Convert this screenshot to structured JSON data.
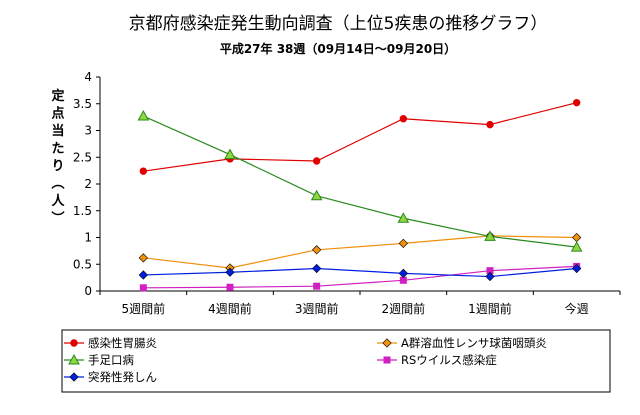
{
  "chart_data": {
    "type": "line",
    "title": "京都府感染症発生動向調査（上位5疾患の推移グラフ）",
    "subtitle": "平成27年 38週（09月14日～09月20日）",
    "ylabel": "定点当たり（人）",
    "xlabel": "",
    "categories": [
      "5週間前",
      "4週間前",
      "3週間前",
      "2週間前",
      "1週間前",
      "今週"
    ],
    "ylim": [
      0,
      4
    ],
    "yticks": [
      "0",
      "0.5",
      "1",
      "1.5",
      "2",
      "2.5",
      "3",
      "3.5",
      "4"
    ],
    "grid": false,
    "legend_position": "bottom",
    "series": [
      {
        "name": "感染性胃腸炎",
        "color": "#e00000",
        "marker": "circle",
        "values": [
          2.24,
          2.47,
          2.43,
          3.22,
          3.11,
          3.52
        ]
      },
      {
        "name": "A群溶血性レンサ球菌咽頭炎",
        "color": "#f0900c",
        "marker": "diamond",
        "values": [
          0.62,
          0.43,
          0.77,
          0.89,
          1.03,
          1.0
        ]
      },
      {
        "name": "手足口病",
        "color": "#2a8a1e",
        "marker": "triangle",
        "values": [
          3.27,
          2.55,
          1.78,
          1.36,
          1.02,
          0.82
        ]
      },
      {
        "name": "RSウイルス感染症",
        "color": "#d020c0",
        "marker": "square",
        "values": [
          0.06,
          0.07,
          0.09,
          0.2,
          0.38,
          0.46
        ]
      },
      {
        "name": "突発性発しん",
        "color": "#0020e0",
        "marker": "diamond",
        "values": [
          0.3,
          0.35,
          0.42,
          0.33,
          0.27,
          0.42
        ]
      }
    ]
  }
}
